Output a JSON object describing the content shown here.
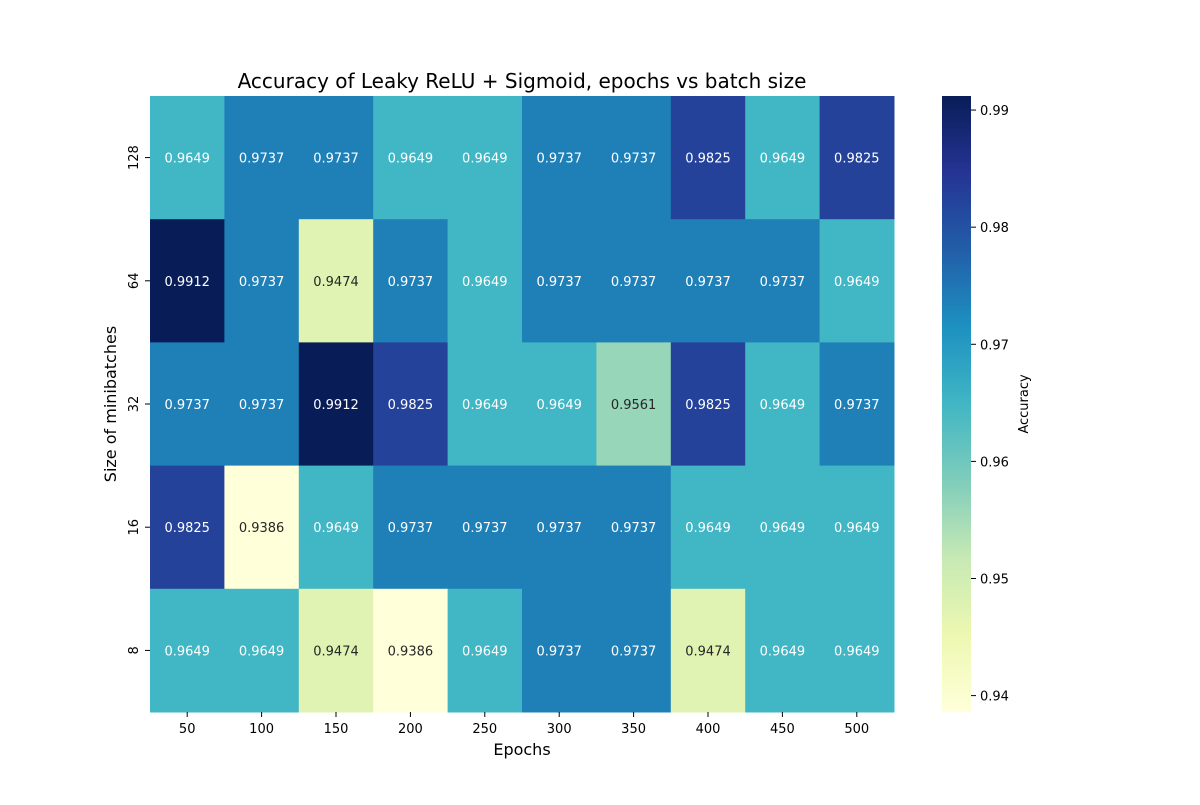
{
  "chart_data": {
    "type": "heatmap",
    "title": "Accuracy of Leaky ReLU + Sigmoid, epochs vs batch size",
    "xlabel": "Epochs",
    "ylabel": "Size of minibatches",
    "x": [
      "50",
      "100",
      "150",
      "200",
      "250",
      "300",
      "350",
      "400",
      "450",
      "500"
    ],
    "y": [
      "128",
      "64",
      "32",
      "16",
      "8"
    ],
    "values": [
      [
        0.9649,
        0.9737,
        0.9737,
        0.9649,
        0.9649,
        0.9737,
        0.9737,
        0.9825,
        0.9649,
        0.9825
      ],
      [
        0.9912,
        0.9737,
        0.9474,
        0.9737,
        0.9649,
        0.9737,
        0.9737,
        0.9737,
        0.9737,
        0.9649
      ],
      [
        0.9737,
        0.9737,
        0.9912,
        0.9825,
        0.9649,
        0.9649,
        0.9561,
        0.9825,
        0.9649,
        0.9737
      ],
      [
        0.9825,
        0.9386,
        0.9649,
        0.9737,
        0.9737,
        0.9737,
        0.9737,
        0.9649,
        0.9649,
        0.9649
      ],
      [
        0.9649,
        0.9649,
        0.9474,
        0.9386,
        0.9649,
        0.9737,
        0.9737,
        0.9474,
        0.9649,
        0.9649
      ]
    ],
    "colorbar": {
      "label": "Accuracy",
      "ticks": [
        "0.94",
        "0.95",
        "0.96",
        "0.97",
        "0.98",
        "0.99"
      ],
      "range": [
        0.9386,
        0.9912
      ],
      "colormap": "YlGnBu"
    }
  }
}
